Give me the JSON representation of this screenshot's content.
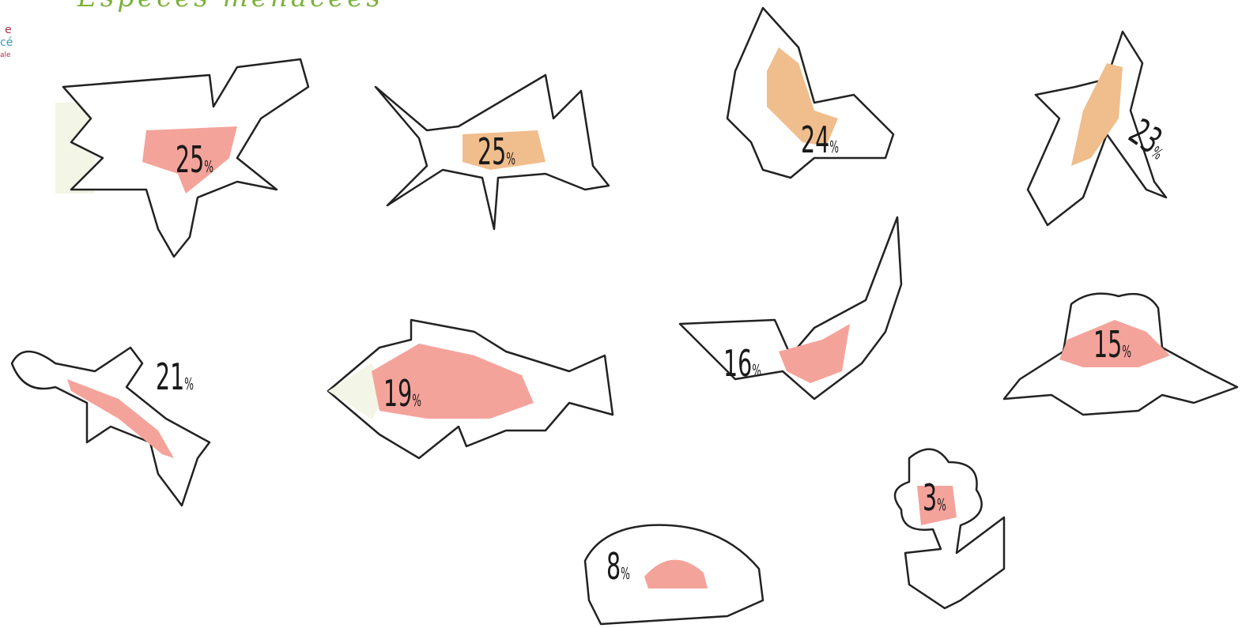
{
  "header": {
    "title": "Espèces menacées",
    "logo": [
      "e",
      "cé",
      "ale"
    ]
  },
  "species": [
    {
      "value": 25,
      "unit": "%"
    },
    {
      "value": 25,
      "unit": "%"
    },
    {
      "value": 24,
      "unit": "%"
    },
    {
      "value": 23,
      "unit": "%"
    },
    {
      "value": 21,
      "unit": "%"
    },
    {
      "value": 19,
      "unit": "%"
    },
    {
      "value": 16,
      "unit": "%"
    },
    {
      "value": 15,
      "unit": "%"
    },
    {
      "value": 3,
      "unit": "%"
    },
    {
      "value": 8,
      "unit": "%"
    }
  ]
}
